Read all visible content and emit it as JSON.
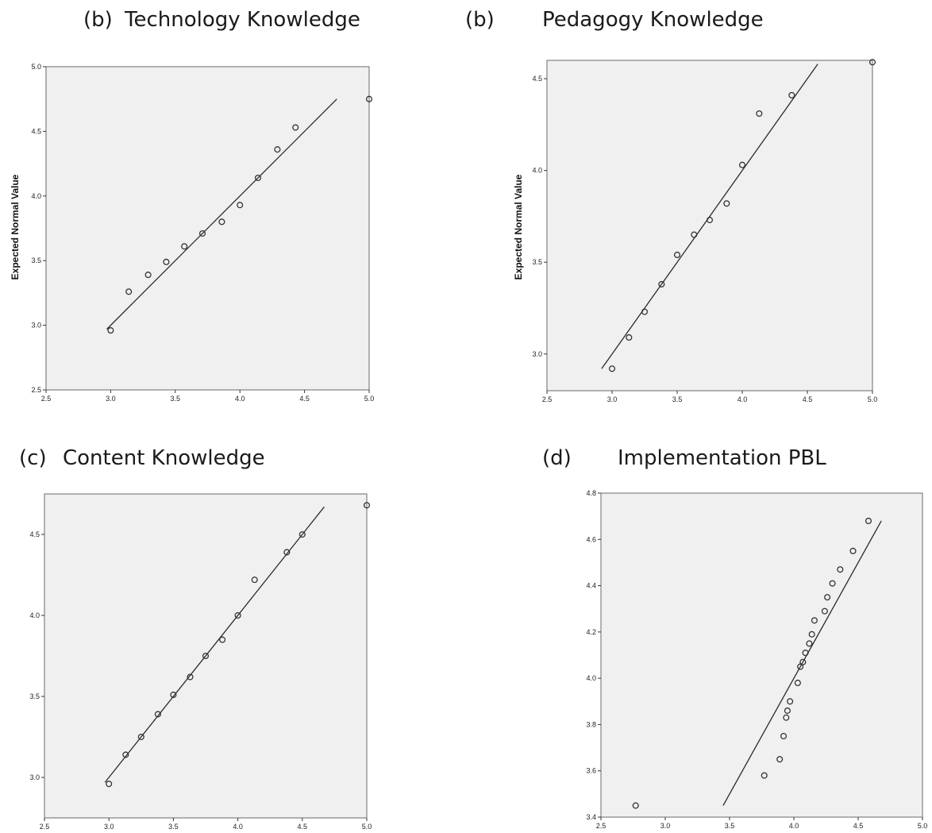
{
  "chart_data": [
    {
      "type": "scatter",
      "panel_letter": "(b)",
      "title": "Technology Knowledge",
      "ylabel": "Expected Normal Value",
      "xlabel": "",
      "xlim": [
        2.5,
        5.0
      ],
      "ylim": [
        2.5,
        5.0
      ],
      "xticks": [
        "2.5",
        "3.0",
        "3.5",
        "4.0",
        "4.5",
        "5.0"
      ],
      "yticks": [
        "2.5",
        "3.0",
        "3.5",
        "4.0",
        "4.5",
        "5.0"
      ],
      "x": [
        3.0,
        3.14,
        3.29,
        3.43,
        3.57,
        3.71,
        3.86,
        4.0,
        4.14,
        4.29,
        4.43,
        5.0
      ],
      "y": [
        2.96,
        3.26,
        3.39,
        3.49,
        3.61,
        3.71,
        3.8,
        3.93,
        4.14,
        4.36,
        4.53,
        4.75
      ],
      "fit_line": [
        [
          2.97,
          2.97
        ],
        [
          4.75,
          4.75
        ]
      ]
    },
    {
      "type": "scatter",
      "panel_letter": "(b)",
      "title": "Pedagogy Knowledge",
      "ylabel": "Expected Normal Value",
      "xlabel": "",
      "xlim": [
        2.5,
        5.0
      ],
      "ylim": [
        2.8,
        4.6
      ],
      "xticks": [
        "2.5",
        "3.0",
        "3.5",
        "4.0",
        "4.5",
        "5.0"
      ],
      "yticks": [
        "3.0",
        "3.5",
        "4.0",
        "4.5"
      ],
      "x": [
        3.0,
        3.13,
        3.25,
        3.38,
        3.5,
        3.63,
        3.75,
        3.88,
        4.0,
        4.13,
        4.38,
        5.0
      ],
      "y": [
        2.92,
        3.09,
        3.23,
        3.38,
        3.54,
        3.65,
        3.73,
        3.82,
        4.03,
        4.31,
        4.41,
        4.59
      ],
      "fit_line": [
        [
          2.92,
          2.92
        ],
        [
          4.58,
          4.58
        ]
      ]
    },
    {
      "type": "scatter",
      "panel_letter": "(c)",
      "title": "Content Knowledge",
      "ylabel": "",
      "xlabel": "",
      "xlim": [
        2.5,
        5.0
      ],
      "ylim": [
        2.75,
        4.75
      ],
      "xticks": [
        "2.5",
        "3.0",
        "3.5",
        "4.0",
        "4.5",
        "5.0"
      ],
      "yticks": [
        "3.0",
        "3.5",
        "4.0",
        "4.5"
      ],
      "x": [
        3.0,
        3.13,
        3.25,
        3.38,
        3.5,
        3.63,
        3.75,
        3.88,
        4.0,
        4.13,
        4.38,
        4.5,
        5.0
      ],
      "y": [
        2.96,
        3.14,
        3.25,
        3.39,
        3.51,
        3.62,
        3.75,
        3.85,
        4.0,
        4.22,
        4.39,
        4.5,
        4.68
      ],
      "fit_line": [
        [
          2.97,
          2.97
        ],
        [
          4.67,
          4.67
        ]
      ]
    },
    {
      "type": "scatter",
      "panel_letter": "(d)",
      "title": "Implementation PBL",
      "ylabel": "",
      "xlabel": "",
      "xlim": [
        2.5,
        5.0
      ],
      "ylim": [
        3.4,
        4.8
      ],
      "xticks": [
        "2.5",
        "3.0",
        "3.5",
        "4.0",
        "4.5",
        "5.0"
      ],
      "yticks": [
        "3.4",
        "3.6",
        "3.8",
        "4.0",
        "4.2",
        "4.4",
        "4.6",
        "4.8"
      ],
      "x": [
        2.77,
        3.77,
        3.89,
        3.92,
        3.94,
        3.95,
        3.97,
        4.03,
        4.05,
        4.07,
        4.09,
        4.12,
        4.14,
        4.16,
        4.24,
        4.26,
        4.3,
        4.36,
        4.46,
        4.58
      ],
      "y": [
        3.45,
        3.58,
        3.65,
        3.75,
        3.83,
        3.86,
        3.9,
        3.98,
        4.05,
        4.07,
        4.11,
        4.15,
        4.19,
        4.25,
        4.29,
        4.35,
        4.41,
        4.47,
        4.55,
        4.68
      ],
      "fit_line": [
        [
          3.45,
          3.45
        ],
        [
          4.68,
          4.68
        ]
      ]
    }
  ]
}
